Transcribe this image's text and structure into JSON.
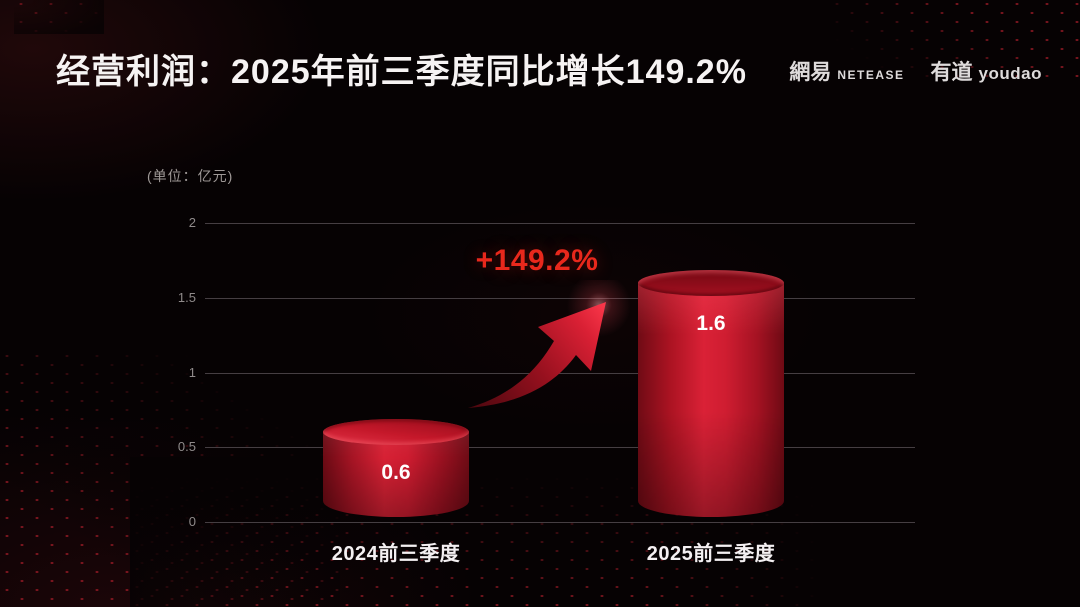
{
  "slide": {
    "title": "经营利润：2025年前三季度同比增长149.2%",
    "brand": {
      "netease_cn": "網易",
      "netease_en": "NETEASE",
      "youdao_cn": "有道",
      "youdao_en": "youdao"
    },
    "unit_label": "(单位：亿元)",
    "growth_annotation": "+149.2%"
  },
  "chart_data": {
    "type": "bar",
    "title": "经营利润：2025年前三季度同比增长149.2%",
    "unit": "亿元",
    "categories": [
      "2024前三季度",
      "2025前三季度"
    ],
    "values": [
      0.6,
      1.6
    ],
    "data_labels": [
      "0.6",
      "1.6"
    ],
    "growth_label": "+149.2%",
    "yticks": [
      0,
      0.5,
      1,
      1.5,
      2
    ],
    "ylim": [
      0,
      2
    ],
    "grid": true,
    "legend": false,
    "bar_style": "cylinder-3d",
    "colors": {
      "bar": "#c9182b",
      "annotation": "#e8281c",
      "title_text": "#f6f3f3",
      "axis_text": "#8f8a8a",
      "grid_line": "#453e42",
      "background": "#060203"
    }
  }
}
